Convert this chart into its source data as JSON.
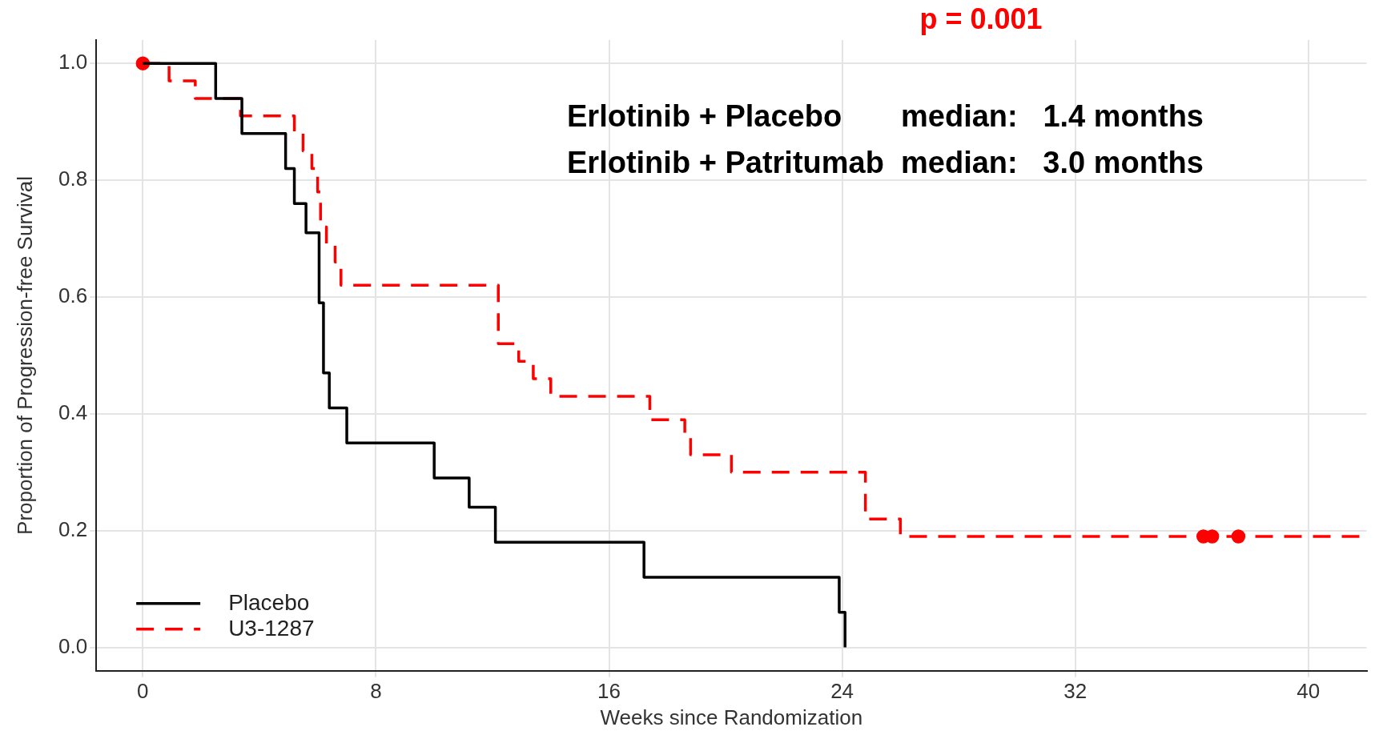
{
  "chart_data": {
    "type": "step",
    "xlabel": "Weeks since Randomization",
    "ylabel": "Proportion of Progression-free Survival",
    "xlim": [
      -1.6,
      42
    ],
    "xticks": [
      0,
      8,
      16,
      24,
      32,
      40
    ],
    "ylim": [
      -0.04,
      1.04
    ],
    "yticks": [
      {
        "value": 0,
        "label": "0.0"
      },
      {
        "value": 0.2,
        "label": "0.2"
      },
      {
        "value": 0.4,
        "label": "0.4"
      },
      {
        "value": 0.6,
        "label": "0.6"
      },
      {
        "value": 0.8,
        "label": "0.8"
      },
      {
        "value": 1,
        "label": "1.0"
      }
    ],
    "grid": true,
    "legend": "bottom left",
    "annotations": [
      "p = 0.001",
      "Erlotinib + Placebo       median:   1.4 months",
      "Erlotinib + Patritumab  median:   3.0 months"
    ],
    "series": [
      {
        "name": "Placebo",
        "color": "#000000",
        "line_style": "solid",
        "x": [
          0,
          2.5,
          3.4,
          4.9,
          5.2,
          5.6,
          6.05,
          6.2,
          6.4,
          7.0,
          10.0,
          11.2,
          12.1,
          17.2,
          23.9,
          24.1
        ],
        "values": [
          1.0,
          0.94,
          0.88,
          0.82,
          0.76,
          0.71,
          0.59,
          0.47,
          0.41,
          0.35,
          0.29,
          0.24,
          0.18,
          0.12,
          0.06,
          0.0
        ]
      },
      {
        "name": "U3-1287",
        "color": "#ff0000",
        "line_style": "dashed",
        "x": [
          0,
          0.9,
          1.8,
          3.35,
          5.2,
          5.5,
          5.8,
          6.0,
          6.1,
          6.3,
          6.6,
          6.8,
          12.2,
          12.9,
          13.4,
          14.0,
          17.4,
          18.6,
          18.8,
          20.2,
          24.8,
          26.0,
          42
        ],
        "values": [
          1.0,
          0.97,
          0.94,
          0.91,
          0.88,
          0.85,
          0.82,
          0.78,
          0.72,
          0.69,
          0.66,
          0.62,
          0.52,
          0.49,
          0.46,
          0.43,
          0.39,
          0.36,
          0.33,
          0.3,
          0.22,
          0.19,
          0.19
        ]
      },
      {
        "type": "scatter",
        "color": "#ff0000",
        "marker": "circle",
        "x": [
          0,
          36.4,
          36.7,
          37.6
        ],
        "values": [
          1.0,
          0.19,
          0.19,
          0.19
        ]
      }
    ]
  }
}
